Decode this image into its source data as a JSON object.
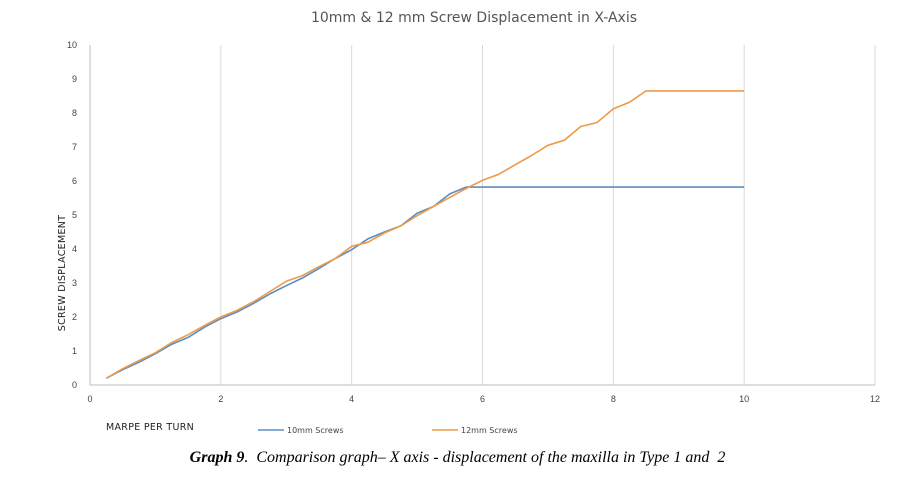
{
  "chart_data": {
    "type": "line",
    "title": "10mm & 12 mm Screw Displacement in X-Axis",
    "xlabel": "MARPE PER TURN",
    "ylabel": "SCREW DISPLACEMENT",
    "xlim": [
      0,
      12
    ],
    "ylim": [
      0,
      10
    ],
    "x_ticks": [
      "0",
      "2",
      "4",
      "6",
      "8",
      "10",
      "12"
    ],
    "y_ticks": [
      "0",
      "1",
      "2",
      "3",
      "4",
      "5",
      "6",
      "7",
      "8",
      "9",
      "10"
    ],
    "grid": "vertical",
    "legend_position": "bottom",
    "series": [
      {
        "name": "10mm Screws",
        "color": "#5b8ec2",
        "points": [
          [
            0.25,
            0.2
          ],
          [
            0.5,
            0.45
          ],
          [
            0.75,
            0.67
          ],
          [
            1.0,
            0.92
          ],
          [
            1.25,
            1.2
          ],
          [
            1.5,
            1.4
          ],
          [
            1.75,
            1.7
          ],
          [
            2.0,
            1.95
          ],
          [
            2.25,
            2.15
          ],
          [
            2.5,
            2.4
          ],
          [
            2.75,
            2.68
          ],
          [
            3.0,
            2.92
          ],
          [
            3.25,
            3.15
          ],
          [
            3.5,
            3.43
          ],
          [
            3.75,
            3.72
          ],
          [
            4.0,
            3.98
          ],
          [
            4.25,
            4.3
          ],
          [
            4.5,
            4.5
          ],
          [
            4.75,
            4.68
          ],
          [
            5.0,
            5.05
          ],
          [
            5.25,
            5.25
          ],
          [
            5.5,
            5.62
          ],
          [
            5.75,
            5.82
          ],
          [
            6.0,
            5.82
          ],
          [
            7.0,
            5.82
          ],
          [
            8.0,
            5.82
          ],
          [
            9.0,
            5.82
          ],
          [
            10.0,
            5.82
          ]
        ]
      },
      {
        "name": "12mm Screws",
        "color": "#ed9a4a",
        "points": [
          [
            0.25,
            0.2
          ],
          [
            0.5,
            0.48
          ],
          [
            0.75,
            0.72
          ],
          [
            1.0,
            0.95
          ],
          [
            1.25,
            1.25
          ],
          [
            1.5,
            1.48
          ],
          [
            1.75,
            1.75
          ],
          [
            2.0,
            2.0
          ],
          [
            2.25,
            2.2
          ],
          [
            2.5,
            2.45
          ],
          [
            2.75,
            2.75
          ],
          [
            3.0,
            3.05
          ],
          [
            3.25,
            3.22
          ],
          [
            3.5,
            3.48
          ],
          [
            3.75,
            3.72
          ],
          [
            4.0,
            4.08
          ],
          [
            4.25,
            4.2
          ],
          [
            4.5,
            4.47
          ],
          [
            4.75,
            4.68
          ],
          [
            5.0,
            4.98
          ],
          [
            5.25,
            5.25
          ],
          [
            5.5,
            5.52
          ],
          [
            5.75,
            5.78
          ],
          [
            6.0,
            6.02
          ],
          [
            6.25,
            6.2
          ],
          [
            6.5,
            6.48
          ],
          [
            6.75,
            6.75
          ],
          [
            7.0,
            7.05
          ],
          [
            7.25,
            7.2
          ],
          [
            7.5,
            7.6
          ],
          [
            7.75,
            7.72
          ],
          [
            8.0,
            8.12
          ],
          [
            8.25,
            8.32
          ],
          [
            8.5,
            8.65
          ],
          [
            8.75,
            8.65
          ],
          [
            9.0,
            8.65
          ],
          [
            9.5,
            8.65
          ],
          [
            10.0,
            8.65
          ]
        ]
      }
    ]
  },
  "caption": {
    "label": "Graph 9",
    "text": ".  Comparison graph– X axis - displacement of the maxilla in Type 1 and  2"
  }
}
